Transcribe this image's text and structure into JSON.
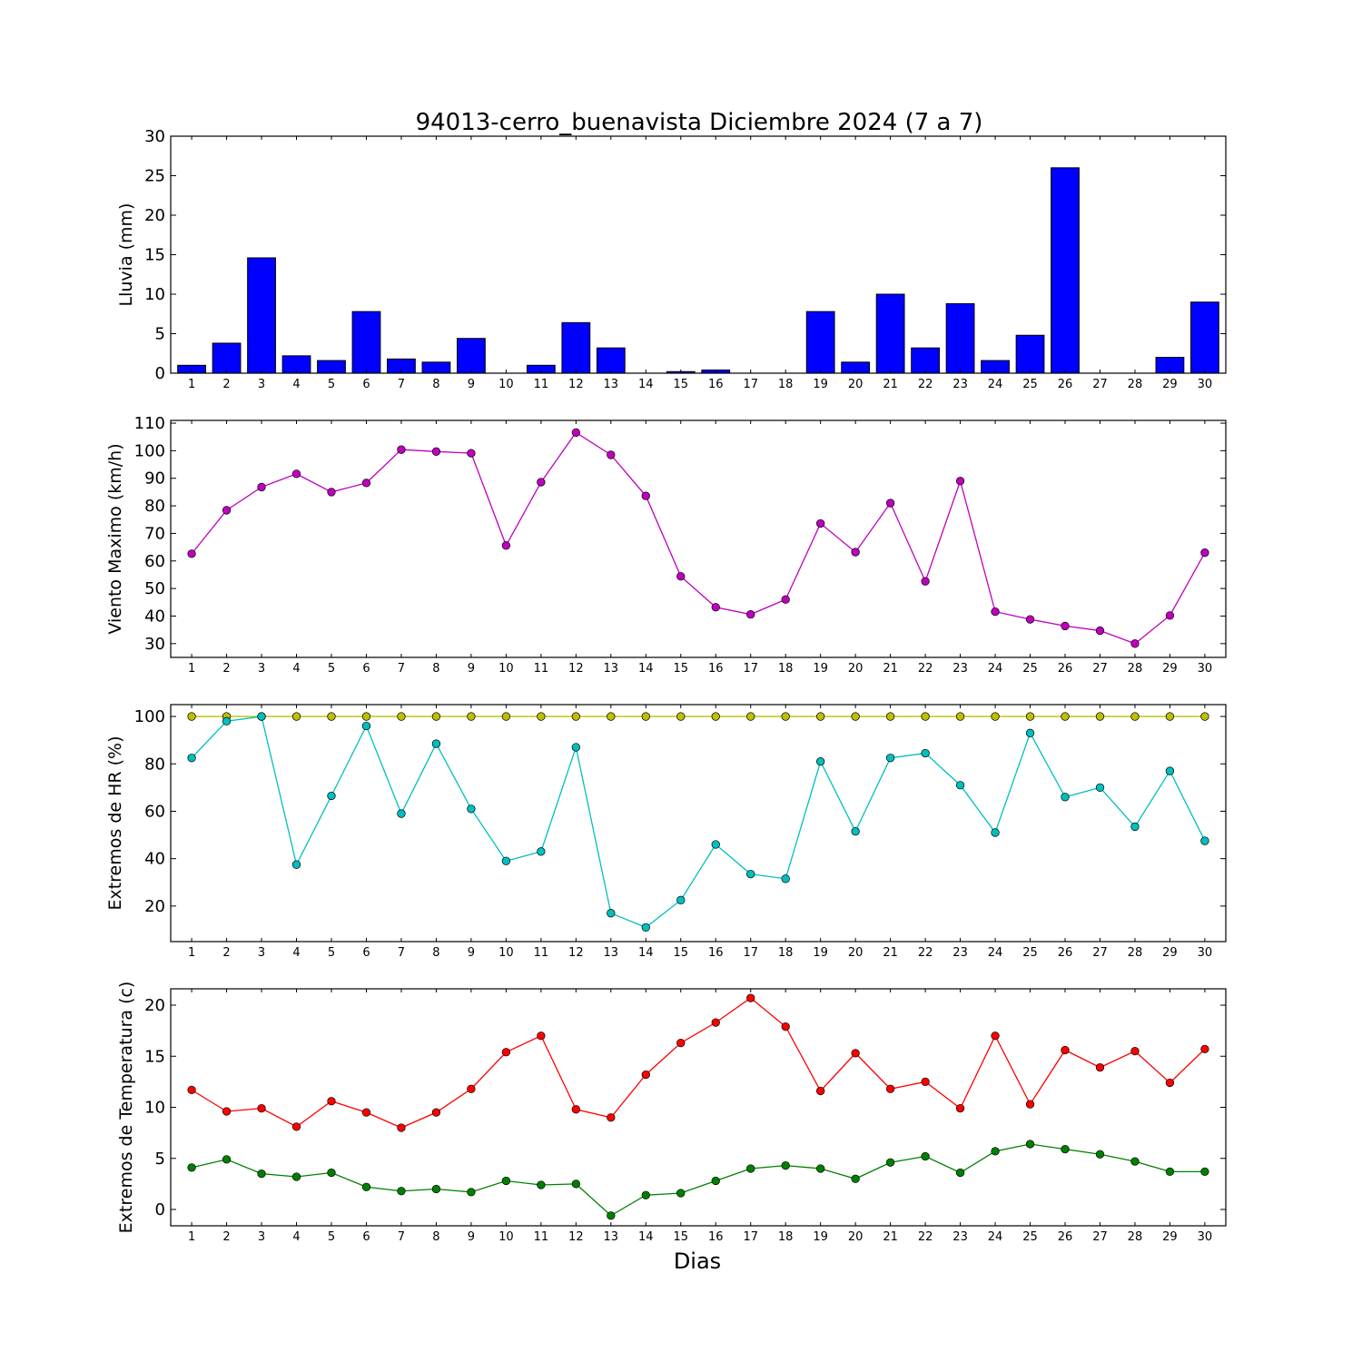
{
  "figure": {
    "title": "94013-cerro_buenavista Diciembre 2024  (7 a 7)",
    "xlabel": "Dias"
  },
  "chart_data": [
    {
      "type": "bar",
      "ylabel": "Lluvia (mm)",
      "ylim": [
        0,
        30
      ],
      "yticks": [
        0,
        5,
        10,
        15,
        20,
        25,
        30
      ],
      "categories": [
        1,
        2,
        3,
        4,
        5,
        6,
        7,
        8,
        9,
        10,
        11,
        12,
        13,
        14,
        15,
        16,
        17,
        18,
        19,
        20,
        21,
        22,
        23,
        24,
        25,
        26,
        27,
        28,
        29,
        30
      ],
      "grid": false,
      "series": [
        {
          "color": "#0000ff",
          "values": [
            1.0,
            3.8,
            14.6,
            2.2,
            1.6,
            7.8,
            1.8,
            1.4,
            4.4,
            0.0,
            1.0,
            6.4,
            3.2,
            0.0,
            0.2,
            0.4,
            0.0,
            0.0,
            7.8,
            1.4,
            10.0,
            3.2,
            8.8,
            1.6,
            4.8,
            26.0,
            0.0,
            0.0,
            2.0,
            9.0
          ]
        }
      ]
    },
    {
      "type": "line",
      "ylabel": "Viento Maximo (km/h)",
      "ylim": [
        25,
        111
      ],
      "yticks": [
        30,
        40,
        50,
        60,
        70,
        80,
        90,
        100,
        110
      ],
      "x": [
        1,
        2,
        3,
        4,
        5,
        6,
        7,
        8,
        9,
        10,
        11,
        12,
        13,
        14,
        15,
        16,
        17,
        18,
        19,
        20,
        21,
        22,
        23,
        24,
        25,
        26,
        27,
        28,
        29,
        30
      ],
      "grid": false,
      "series": [
        {
          "color": "#bf00bf",
          "values": [
            62.6,
            78.4,
            86.8,
            91.6,
            85.0,
            88.3,
            100.4,
            99.7,
            99.1,
            65.6,
            88.6,
            106.6,
            98.5,
            83.6,
            54.4,
            43.2,
            40.6,
            46.0,
            73.6,
            63.2,
            81.0,
            52.6,
            89.0,
            41.6,
            38.8,
            36.4,
            34.7,
            30.0,
            40.2,
            63.0
          ]
        }
      ]
    },
    {
      "type": "line",
      "ylabel": "Extremos de HR (%)",
      "ylim": [
        5,
        105
      ],
      "yticks": [
        20,
        40,
        60,
        80,
        100
      ],
      "x": [
        1,
        2,
        3,
        4,
        5,
        6,
        7,
        8,
        9,
        10,
        11,
        12,
        13,
        14,
        15,
        16,
        17,
        18,
        19,
        20,
        21,
        22,
        23,
        24,
        25,
        26,
        27,
        28,
        29,
        30
      ],
      "grid": false,
      "series": [
        {
          "color": "#bfbf00",
          "values": [
            100,
            100,
            100,
            100,
            100,
            100,
            100,
            100,
            100,
            100,
            100,
            100,
            100,
            100,
            100,
            100,
            100,
            100,
            100,
            100,
            100,
            100,
            100,
            100,
            100,
            100,
            100,
            100,
            100,
            100
          ]
        },
        {
          "color": "#00bfbf",
          "values": [
            82.5,
            98,
            100,
            37.5,
            66.5,
            96,
            59,
            88.5,
            61,
            39,
            43,
            87,
            17,
            11,
            22.5,
            46,
            33.5,
            31.5,
            81,
            51.5,
            82.5,
            84.5,
            71,
            51,
            93,
            66,
            70,
            53.5,
            77,
            47.5
          ]
        }
      ]
    },
    {
      "type": "line",
      "ylabel": "Extremos de Temperatura (c)",
      "ylim": [
        -1.6,
        21.6
      ],
      "yticks": [
        0,
        5,
        10,
        15,
        20
      ],
      "x": [
        1,
        2,
        3,
        4,
        5,
        6,
        7,
        8,
        9,
        10,
        11,
        12,
        13,
        14,
        15,
        16,
        17,
        18,
        19,
        20,
        21,
        22,
        23,
        24,
        25,
        26,
        27,
        28,
        29,
        30
      ],
      "grid": false,
      "series": [
        {
          "color": "#ff0000",
          "values": [
            11.7,
            9.6,
            9.9,
            8.1,
            10.6,
            9.5,
            8.0,
            9.5,
            11.8,
            15.4,
            17.0,
            9.8,
            9.0,
            13.2,
            16.3,
            18.3,
            20.7,
            17.9,
            11.6,
            15.3,
            11.8,
            12.5,
            9.9,
            17.0,
            10.3,
            15.6,
            13.9,
            15.5,
            12.4,
            15.7
          ]
        },
        {
          "color": "#008000",
          "values": [
            4.1,
            4.9,
            3.5,
            3.2,
            3.6,
            2.2,
            1.8,
            2.0,
            1.7,
            2.8,
            2.4,
            2.5,
            -0.6,
            1.4,
            1.6,
            2.8,
            4.0,
            4.3,
            4.0,
            3.0,
            4.6,
            5.2,
            3.6,
            5.7,
            6.4,
            5.9,
            5.4,
            4.7,
            3.7,
            3.7
          ]
        }
      ]
    }
  ]
}
